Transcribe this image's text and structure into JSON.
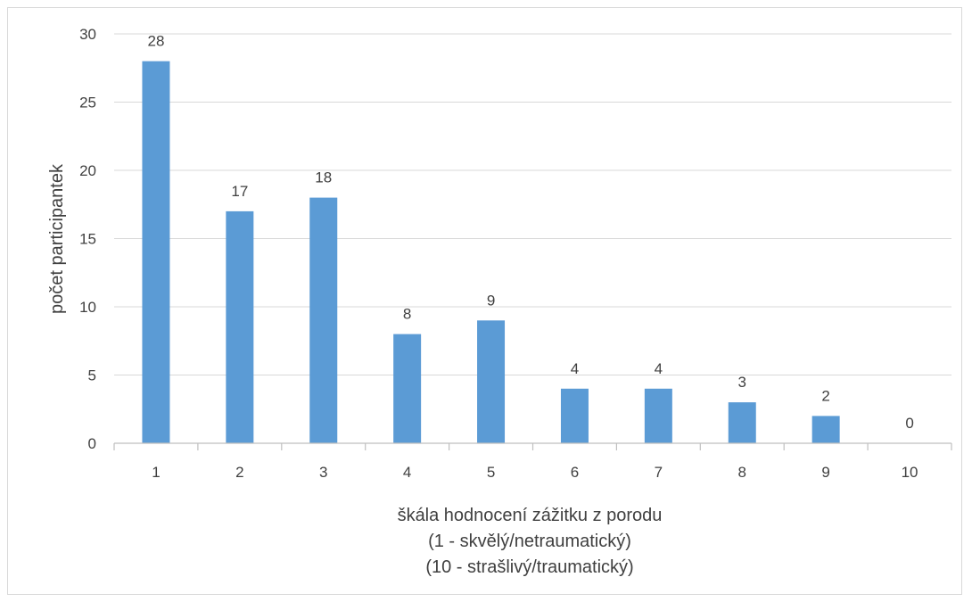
{
  "chart_data": {
    "type": "bar",
    "categories": [
      "1",
      "2",
      "3",
      "4",
      "5",
      "6",
      "7",
      "8",
      "9",
      "10"
    ],
    "values": [
      28,
      17,
      18,
      8,
      9,
      4,
      4,
      3,
      2,
      0
    ],
    "data_labels": [
      "28",
      "17",
      "18",
      "8",
      "9",
      "4",
      "4",
      "3",
      "2",
      "0"
    ],
    "title": "",
    "xlabel": [
      "škála hodnocení zážitku z porodu",
      "(1 - skvělý/netraumatický)",
      "(10 - strašlivý/traumatický)"
    ],
    "ylabel": "počet participantek",
    "ylim": [
      0,
      30
    ],
    "yticks": [
      0,
      5,
      10,
      15,
      20,
      25,
      30
    ],
    "ytick_labels": [
      "0",
      "5",
      "10",
      "15",
      "20",
      "25",
      "30"
    ],
    "grid": true,
    "legend": "none",
    "bar_color": "#5b9bd5",
    "gridline_color": "#d9d9d9",
    "text_color": "#404040"
  }
}
